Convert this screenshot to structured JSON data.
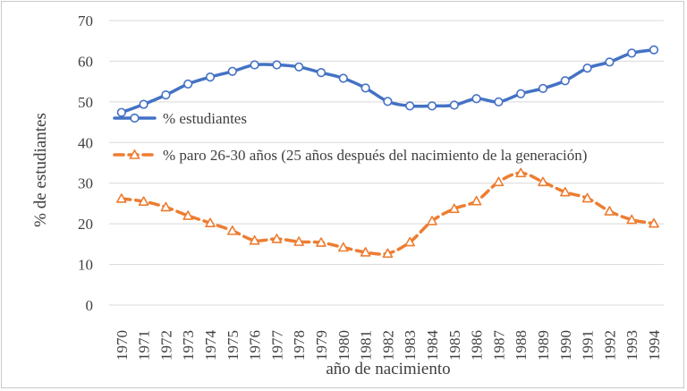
{
  "chart_data": {
    "type": "line",
    "title": "",
    "xlabel": "año de nacimiento",
    "ylabel": "% de estudiantes",
    "ylim": [
      0,
      70
    ],
    "yticks": [
      0,
      10,
      20,
      30,
      40,
      50,
      60,
      70
    ],
    "grid": true,
    "legend_position": "top-left, over plot",
    "categories": [
      "1970",
      "1971",
      "1972",
      "1973",
      "1974",
      "1975",
      "1976",
      "1977",
      "1978",
      "1979",
      "1980",
      "1981",
      "1982",
      "1983",
      "1984",
      "1985",
      "1986",
      "1987",
      "1988",
      "1989",
      "1990",
      "1991",
      "1992",
      "1993",
      "1994"
    ],
    "series": [
      {
        "name": "% estudiantes",
        "color": "#4472c4",
        "marker": "circle",
        "line_style": "solid",
        "values": [
          47.4,
          49.4,
          51.7,
          54.4,
          56.1,
          57.5,
          59.1,
          59.1,
          58.6,
          57.2,
          55.8,
          53.4,
          50.1,
          49.0,
          49.0,
          49.2,
          50.8,
          50.0,
          52.0,
          53.3,
          55.2,
          58.3,
          59.8,
          62.0,
          62.8
        ]
      },
      {
        "name": "% paro 26-30 años (25 años después del nacimiento de la generación)",
        "color": "#ed7d31",
        "marker": "triangle",
        "line_style": "dashed",
        "values": [
          26.2,
          25.5,
          24.1,
          22.0,
          20.2,
          18.3,
          15.9,
          16.3,
          15.6,
          15.4,
          14.2,
          13.0,
          12.7,
          15.5,
          20.7,
          23.7,
          25.6,
          30.3,
          32.5,
          30.3,
          27.8,
          26.3,
          23.1,
          21.0,
          20.1
        ]
      }
    ]
  }
}
